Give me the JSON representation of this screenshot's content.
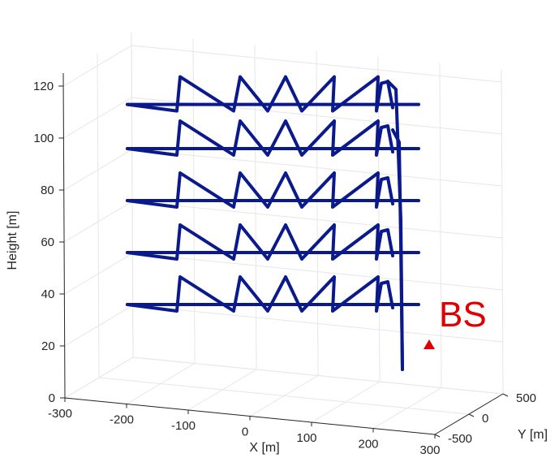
{
  "chart_data": {
    "type": "line",
    "title": "",
    "xlabel": "X [m]",
    "ylabel": "Y [m]",
    "zlabel": "Height [m]",
    "xlim": [
      -300,
      300
    ],
    "ylim": [
      -500,
      500
    ],
    "zlim": [
      0,
      125
    ],
    "x_ticks": [
      "-300",
      "-200",
      "-100",
      "0",
      "100",
      "200",
      "300"
    ],
    "y_ticks": [
      "-500",
      "0",
      "500"
    ],
    "z_ticks": [
      "0",
      "20",
      "40",
      "60",
      "80",
      "100",
      "120"
    ],
    "grid": true,
    "view": "3d",
    "line_color": "#0a1a8c",
    "marker_color": "#e00000",
    "flight_levels_m": [
      35,
      55,
      75,
      95,
      112
    ],
    "trajectory_description_points": "Each level: a horizontal pass at constant height plus a vertical zig-zag sweep between level-7 m and level+20 m; final vertical descent near the base station.",
    "base_station": {
      "label": "BS",
      "x": 280,
      "y": 500,
      "z": 20,
      "color": "#e00000"
    }
  }
}
